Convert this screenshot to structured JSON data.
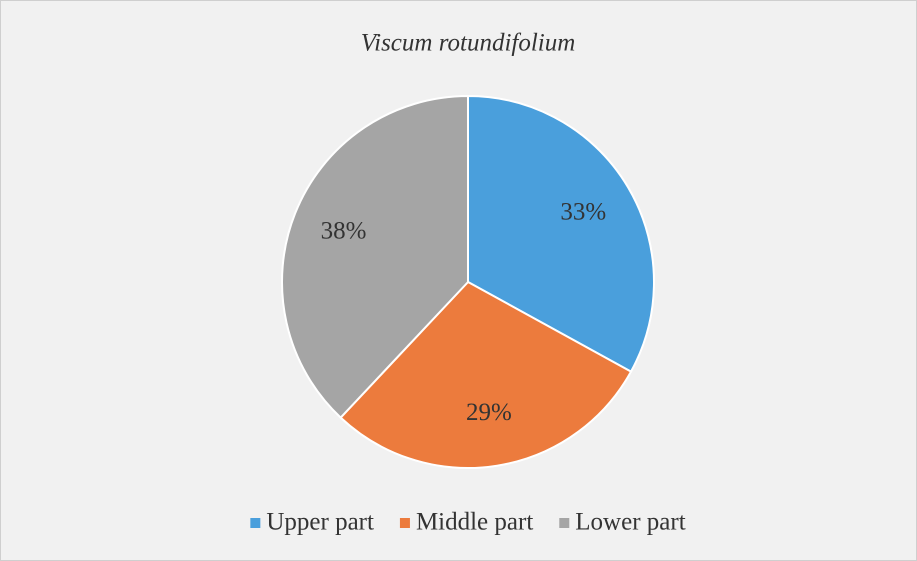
{
  "chart_data": {
    "type": "pie",
    "title": "Viscum rotundifolium",
    "categories": [
      "Upper part",
      "Middle part",
      "Lower part"
    ],
    "values": [
      33,
      29,
      38
    ],
    "value_labels": [
      "33%",
      "29%",
      "38%"
    ],
    "colors": [
      "#4a9fdc",
      "#ec7b3d",
      "#a5a5a5"
    ],
    "legend": "bottom"
  }
}
